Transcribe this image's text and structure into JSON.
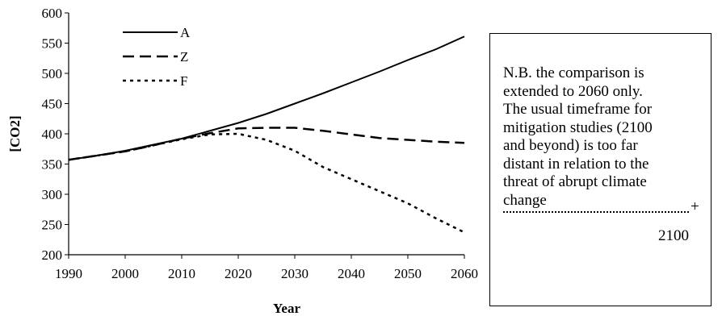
{
  "chart_data": {
    "type": "line",
    "xlabel": "Year",
    "ylabel": "[CO2]",
    "xlim": [
      1990,
      2060
    ],
    "ylim": [
      200,
      600
    ],
    "x_ticks": [
      1990,
      2000,
      2010,
      2020,
      2030,
      2040,
      2050,
      2060
    ],
    "y_ticks": [
      200,
      250,
      300,
      350,
      400,
      450,
      500,
      550,
      600
    ],
    "grid": false,
    "legend_position": "top-left",
    "series": [
      {
        "name": "A",
        "style": "solid",
        "x": [
          1990,
          1995,
          2000,
          2005,
          2010,
          2015,
          2020,
          2025,
          2030,
          2035,
          2040,
          2045,
          2050,
          2055,
          2060
        ],
        "y": [
          357,
          364,
          372,
          382,
          392,
          405,
          418,
          433,
          450,
          467,
          485,
          503,
          522,
          540,
          561
        ]
      },
      {
        "name": "Z",
        "style": "dashed",
        "x": [
          1990,
          1995,
          2000,
          2005,
          2010,
          2015,
          2020,
          2025,
          2030,
          2035,
          2040,
          2045,
          2050,
          2055,
          2060
        ],
        "y": [
          357,
          364,
          371,
          381,
          392,
          401,
          409,
          410,
          410,
          405,
          399,
          393,
          390,
          387,
          385
        ]
      },
      {
        "name": "F",
        "style": "dotted",
        "x": [
          1990,
          1995,
          2000,
          2005,
          2010,
          2015,
          2020,
          2025,
          2030,
          2035,
          2040,
          2045,
          2050,
          2055,
          2060
        ],
        "y": [
          357,
          364,
          371,
          381,
          391,
          399,
          400,
          390,
          372,
          345,
          325,
          305,
          285,
          260,
          237
        ]
      }
    ]
  },
  "note": {
    "text": "N.B. the comparison is\nextended to 2060 only.\nThe usual timeframe for\nmitigation studies (2100\nand beyond) is too far\ndistant in relation to the\nthreat of abrupt climate\nchange",
    "extension_marker": "+",
    "extension_year": "2100"
  }
}
